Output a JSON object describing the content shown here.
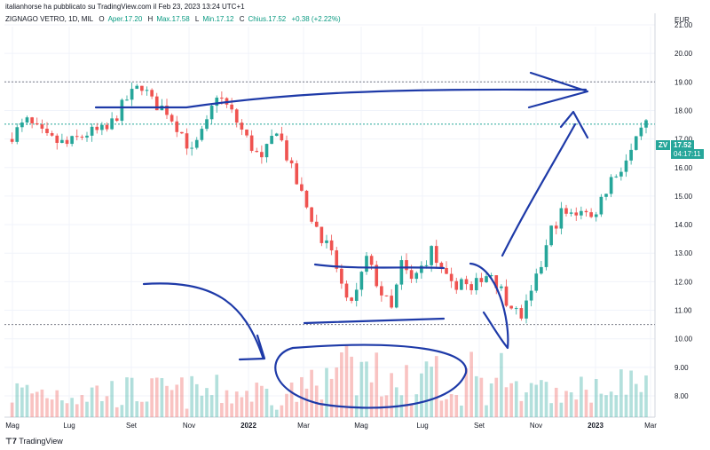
{
  "header": {
    "publisher_line": "italianhorse ha pubblicato su TradingView.com il Feb 23, 2023 13:24 UTC+1",
    "symbol": "ZIGNAGO VETRO, 1D, MIL",
    "open_label": "O",
    "open_text": "Aper.17.20",
    "high_label": "H",
    "high_text": "Max.17.58",
    "low_label": "L",
    "low_text": "Min.17.12",
    "close_label": "C",
    "close_text": "Chius.17.52",
    "change": "+0.38 (+2.22%)",
    "currency": "EUR"
  },
  "price_badge": {
    "ticker": "ZV",
    "price": "17.52",
    "countdown": "04:17:11"
  },
  "footer": {
    "brand": "TradingView"
  },
  "colors": {
    "up": "#26a69a",
    "down": "#ef5350",
    "annotation": "#1e3aa8",
    "grid": "#f0f3fa",
    "last_price": "#26a69a"
  },
  "chart_data": {
    "type": "candlestick",
    "y_ticks": [
      "8.00",
      "9.00",
      "10.00",
      "11.00",
      "12.00",
      "13.00",
      "14.00",
      "15.00",
      "16.00",
      "17.00",
      "18.00",
      "19.00",
      "20.00",
      "21.00",
      "22.00"
    ],
    "y_range": [
      7.5,
      22.0
    ],
    "x_ticks": [
      "Mag",
      "Lug",
      "Set",
      "Nov",
      "2022",
      "Mar",
      "Mag",
      "Lug",
      "Set",
      "Nov",
      "2023",
      "Mar"
    ],
    "horizontal_levels": [
      19.0,
      10.5,
      17.52
    ],
    "price_path": [
      [
        0,
        17.0
      ],
      [
        4,
        17.6
      ],
      [
        8,
        17.0
      ],
      [
        12,
        16.8
      ],
      [
        16,
        17.2
      ],
      [
        20,
        17.3
      ],
      [
        24,
        18.4
      ],
      [
        27,
        18.9
      ],
      [
        29,
        18.3
      ],
      [
        32,
        18.0
      ],
      [
        35,
        17.2
      ],
      [
        37,
        16.5
      ],
      [
        40,
        17.5
      ],
      [
        42,
        18.6
      ],
      [
        45,
        17.9
      ],
      [
        48,
        17.0
      ],
      [
        51,
        16.2
      ],
      [
        54,
        17.4
      ],
      [
        57,
        15.9
      ],
      [
        60,
        14.6
      ],
      [
        63,
        13.6
      ],
      [
        66,
        12.5
      ],
      [
        68,
        11.2
      ],
      [
        70,
        11.6
      ],
      [
        72,
        12.8
      ],
      [
        75,
        11.6
      ],
      [
        77,
        11.0
      ],
      [
        79,
        12.6
      ],
      [
        81,
        12.0
      ],
      [
        83,
        12.5
      ],
      [
        85,
        13.1
      ],
      [
        87,
        12.3
      ],
      [
        89,
        11.8
      ],
      [
        91,
        12.1
      ],
      [
        93,
        11.6
      ],
      [
        95,
        12.2
      ],
      [
        97,
        12.3
      ],
      [
        99,
        11.7
      ],
      [
        101,
        11.1
      ],
      [
        103,
        10.8
      ],
      [
        105,
        11.5
      ],
      [
        107,
        12.6
      ],
      [
        109,
        13.8
      ],
      [
        111,
        14.4
      ],
      [
        113,
        14.3
      ],
      [
        115,
        14.6
      ],
      [
        117,
        14.2
      ],
      [
        119,
        14.9
      ],
      [
        121,
        15.6
      ],
      [
        123,
        16.0
      ],
      [
        125,
        16.5
      ],
      [
        127,
        17.2
      ],
      [
        128,
        17.52
      ]
    ],
    "volume_level_hint": "volume bars occupy the bottom of the chart; no values printed"
  }
}
